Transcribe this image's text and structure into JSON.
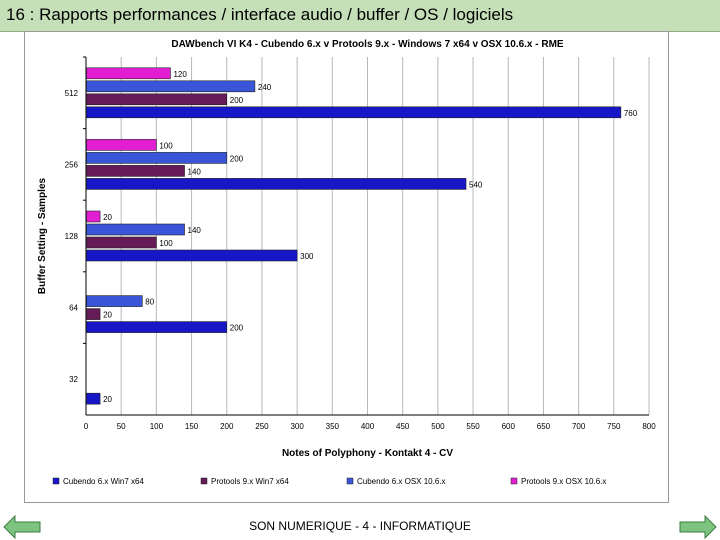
{
  "slide": {
    "title": "16 : Rapports performances / interface audio / buffer / OS / logiciels",
    "footer": "SON NUMERIQUE - 4 - INFORMATIQUE",
    "nav_prev_icon": "arrow-left-icon",
    "nav_next_icon": "arrow-right-icon"
  },
  "colors": {
    "title_bar": "#c5dfb9",
    "nav_arrow": "#7cc47f"
  },
  "chart_data": {
    "type": "bar",
    "orientation": "horizontal",
    "title": "DAWbench VI K4 - Cubendo 6.x v Protools 9.x - Windows 7 x64 v OSX 10.6.x - RME",
    "xlabel": "Notes of Polyphony - Kontakt 4 - CV",
    "ylabel": "Buffer Setting - Samples",
    "categories": [
      "512",
      "256",
      "128",
      "64",
      "32"
    ],
    "xlim": [
      0,
      800
    ],
    "xticks": [
      0,
      50,
      100,
      150,
      200,
      250,
      300,
      350,
      400,
      450,
      500,
      550,
      600,
      650,
      700,
      750,
      800
    ],
    "grid": true,
    "legend_position": "bottom",
    "series": [
      {
        "name": "Protools 9.x OSX 10.6.x",
        "color": "#e11ed2",
        "values": [
          120,
          100,
          20,
          null,
          null
        ]
      },
      {
        "name": "Cubendo 6.x OSX 10.6.x",
        "color": "#3a55d8",
        "values": [
          240,
          200,
          140,
          80,
          null
        ]
      },
      {
        "name": "Protools 9.x Win7 x64",
        "color": "#661a57",
        "values": [
          200,
          140,
          100,
          20,
          null
        ]
      },
      {
        "name": "Cubendo 6.x Win7 x64",
        "color": "#1717c8",
        "values": [
          760,
          540,
          300,
          200,
          20
        ]
      }
    ],
    "legend_order": [
      "Cubendo 6.x Win7 x64",
      "Protools 9.x Win7 x64",
      "Cubendo 6.x OSX 10.6.x",
      "Protools 9.x OSX 10.6.x"
    ]
  }
}
